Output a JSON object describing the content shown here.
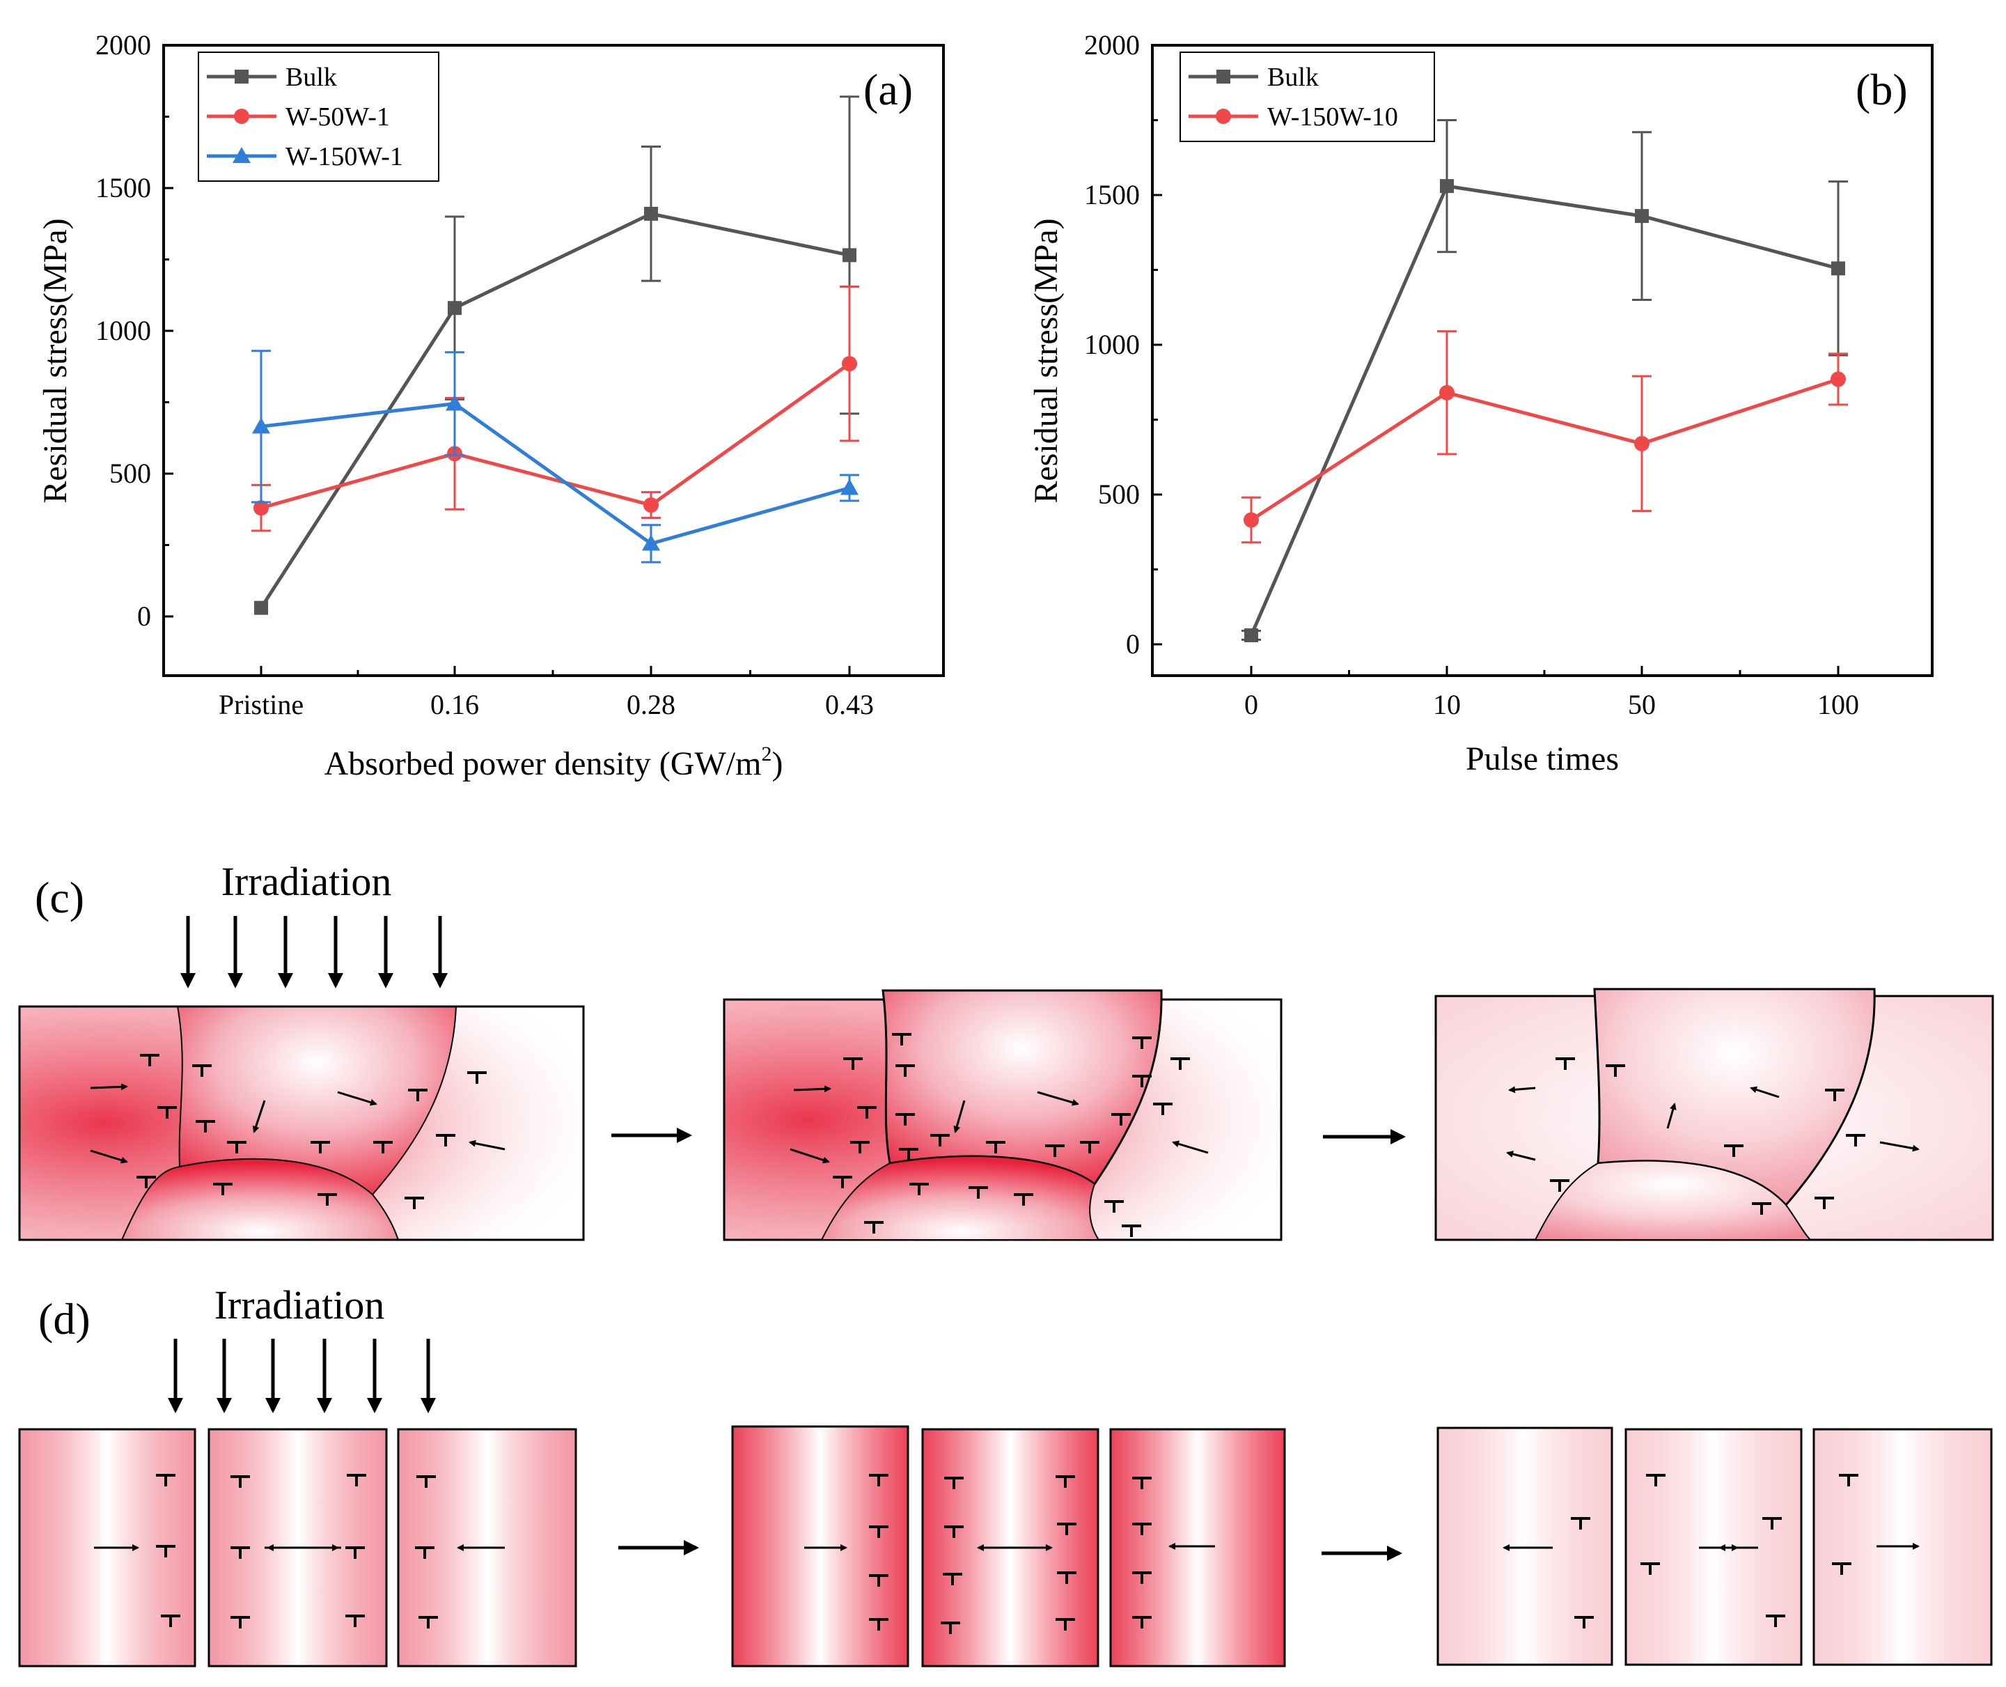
{
  "chart_data": [
    {
      "id": "a",
      "type": "line",
      "panel_label": "(a)",
      "title": "",
      "xlabel": "Absorbed power density (GW/m",
      "xlabel_sup": "2",
      "xlabel_close": ")",
      "ylabel": "Residual stress(MPa)",
      "categories": [
        "Pristine",
        "0.16",
        "0.28",
        "0.43"
      ],
      "ylim": [
        -200,
        2000
      ],
      "yticks": [
        0,
        500,
        1000,
        1500,
        2000
      ],
      "legend_position": "top-left",
      "series": [
        {
          "name": "Bulk",
          "marker": "square",
          "color": "#555555",
          "values": [
            30,
            1080,
            1410,
            1265
          ],
          "errors": [
            0,
            320,
            235,
            555
          ]
        },
        {
          "name": "W-50W-1",
          "marker": "circle",
          "color": "#f04848",
          "values": [
            380,
            570,
            390,
            885
          ],
          "errors": [
            80,
            195,
            45,
            270
          ]
        },
        {
          "name": "W-150W-1",
          "marker": "triangle",
          "color": "#2f7fd8",
          "values": [
            665,
            745,
            255,
            450
          ],
          "errors": [
            265,
            180,
            65,
            45
          ]
        }
      ]
    },
    {
      "id": "b",
      "type": "line",
      "panel_label": "(b)",
      "title": "",
      "xlabel": "Pulse times",
      "ylabel": "Residual stress(MPa)",
      "categories": [
        "0",
        "10",
        "50",
        "100"
      ],
      "ylim": [
        -100,
        2000
      ],
      "yticks": [
        0,
        500,
        1000,
        1500,
        2000
      ],
      "legend_position": "top-left",
      "series": [
        {
          "name": "Bulk",
          "marker": "square",
          "color": "#555555",
          "values": [
            30,
            1530,
            1430,
            1255
          ],
          "errors": [
            15,
            220,
            280,
            290
          ]
        },
        {
          "name": "W-150W-10",
          "marker": "circle",
          "color": "#f04848",
          "values": [
            415,
            840,
            670,
            885
          ],
          "errors": [
            75,
            205,
            225,
            85
          ]
        }
      ]
    }
  ],
  "schematic": {
    "c": {
      "panel_label": "(c)",
      "irradiation": "Irradiation"
    },
    "d": {
      "panel_label": "(d)",
      "irradiation": "Irradiation"
    },
    "colors": {
      "stress": "#e8203a",
      "line": "#000000"
    }
  }
}
